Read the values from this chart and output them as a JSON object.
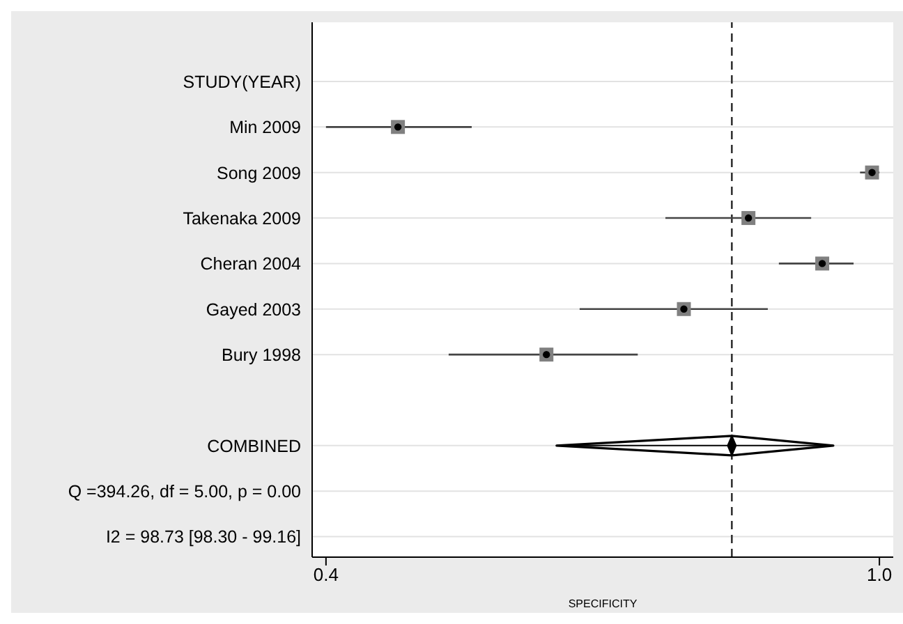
{
  "chart_data": {
    "type": "scatter",
    "orientation": "horizontal",
    "xlabel": "SPECIFICITY",
    "categories": [
      "STUDY(YEAR)",
      "Min 2009",
      "Song 2009",
      "Takenaka 2009",
      "Cheran 2004",
      "Gayed 2003",
      "Bury 1998",
      null,
      "COMBINED",
      "Q =394.26, df = 5.00, p =  0.00",
      "I2 = 98.73 [98.30 - 99.16]"
    ],
    "series": [
      {
        "type": "scatter",
        "marker": "square",
        "color": "#808080",
        "values": [
          null,
          0.478,
          0.992,
          0.858,
          0.938,
          0.788,
          0.639,
          null,
          null,
          null,
          null
        ],
        "errors": [
          null,
          [
            0.4,
            0.558
          ],
          [
            0.979,
            1.0
          ],
          [
            0.768,
            0.926
          ],
          [
            0.891,
            0.972
          ],
          [
            0.675,
            0.879
          ],
          [
            0.533,
            0.738
          ],
          null,
          null,
          null,
          null
        ]
      },
      {
        "type": "scatter",
        "marker": "diamond",
        "color": "#000000",
        "values": [
          null,
          null,
          null,
          null,
          null,
          null,
          null,
          null,
          0.84,
          null,
          null
        ],
        "errors": [
          null,
          null,
          null,
          null,
          null,
          null,
          null,
          null,
          [
            0.65,
            0.95
          ],
          null,
          null
        ]
      }
    ],
    "xlim": [
      0.385,
      1.015
    ],
    "xticks": [
      0.4,
      {
        "value": 1.0,
        "label": "1.0"
      }
    ],
    "ref_lines": [
      {
        "axis": "x",
        "value": 0.84,
        "line_style": "dashed",
        "color": "#333333"
      }
    ],
    "grid": "y",
    "legend": false
  }
}
